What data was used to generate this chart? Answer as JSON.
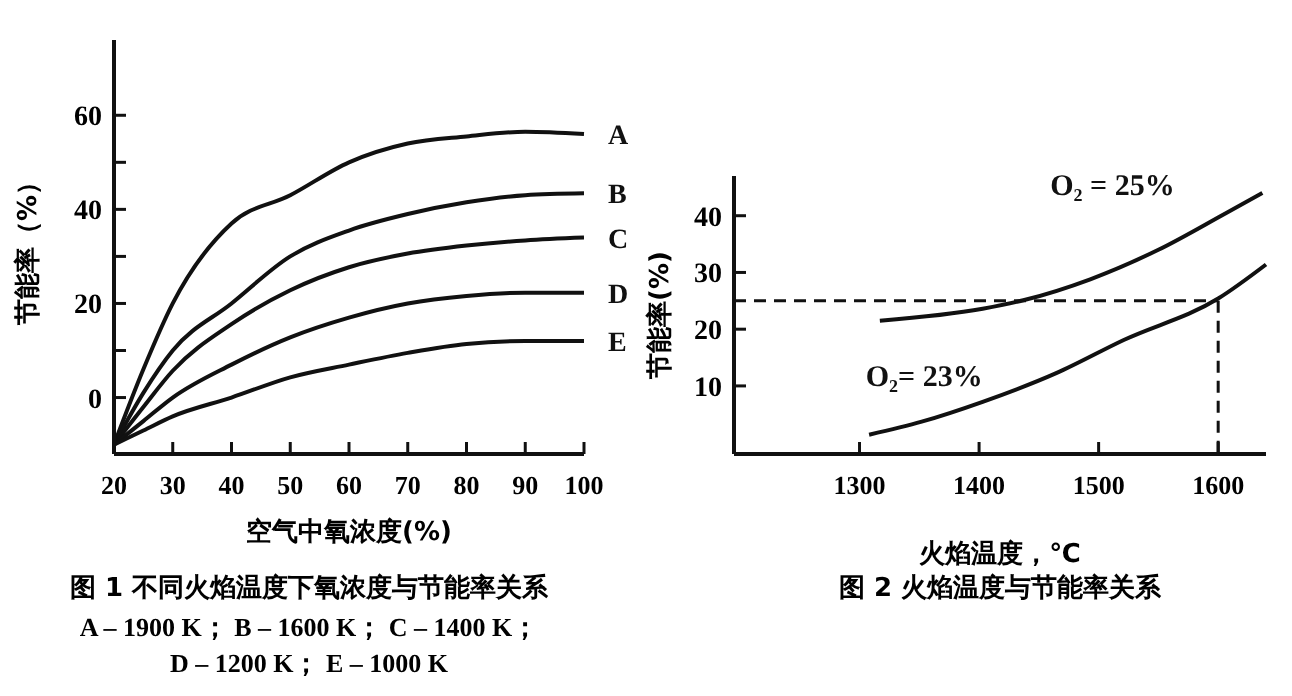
{
  "chart_data": [
    {
      "type": "line",
      "title": "图 1 不同火焰温度下氧浓度与节能率关系",
      "xlabel": "空气中氧浓度(%)",
      "ylabel": "节能率（%）",
      "x": [
        20,
        25,
        30,
        40,
        50,
        60,
        70,
        80,
        90,
        100
      ],
      "series": [
        {
          "name": "A",
          "color": "#111111",
          "values": [
            -10,
            6,
            20,
            37,
            43,
            50,
            54,
            55.5,
            56.5,
            56
          ]
        },
        {
          "name": "B",
          "color": "#111111",
          "values": [
            -10,
            1,
            10,
            20,
            30,
            35.5,
            39,
            41.5,
            43,
            43.4
          ]
        },
        {
          "name": "C",
          "color": "#111111",
          "values": [
            -10,
            -2,
            5.7,
            15.6,
            22.8,
            27.7,
            30.6,
            32.3,
            33.4,
            34
          ]
        },
        {
          "name": "D",
          "color": "#111111",
          "values": [
            -10,
            -5,
            0,
            7,
            12.8,
            17,
            20,
            21.6,
            22.3,
            22.3
          ]
        },
        {
          "name": "E",
          "color": "#111111",
          "values": [
            -10,
            -7,
            -4,
            0,
            4.3,
            7,
            9.5,
            11.4,
            12,
            12
          ]
        }
      ],
      "xlim": [
        20,
        100
      ],
      "xticks": [
        20,
        30,
        40,
        50,
        60,
        70,
        80,
        90,
        100
      ],
      "ylim": [
        -12,
        76
      ],
      "yticks": [
        0,
        {
          "value": 10,
          "label": null
        },
        20,
        {
          "value": 30,
          "label": null
        },
        40,
        {
          "value": 50,
          "label": null
        },
        60
      ],
      "annotations": [
        "A – 1900 K；  B – 1600 K；  C – 1400 K；",
        "D – 1200 K；  E – 1000 K"
      ],
      "grid": false,
      "marker": "none",
      "line_style": "solid"
    },
    {
      "type": "line",
      "title": "图 2 火焰温度与节能率关系",
      "xlabel": "火焰温度，℃",
      "ylabel": "节能率(%)",
      "series": [
        {
          "name": "O₂ = 25%",
          "color": "#111111",
          "x": [
            1317,
            1403,
            1437,
            1493,
            1550,
            1606,
            1637
          ],
          "values": [
            21.5,
            23.6,
            25.1,
            28.8,
            34,
            40.4,
            44
          ]
        },
        {
          "name": "O₂= 23%",
          "color": "#111111",
          "x": [
            1308,
            1352,
            1403,
            1465,
            1521,
            1600,
            1640
          ],
          "values": [
            1.4,
            3.7,
            7.2,
            12.3,
            18.1,
            25.4,
            31.4
          ]
        }
      ],
      "xlim": [
        1195,
        1640
      ],
      "xticks": [
        1300,
        1400,
        1500,
        1600
      ],
      "ylim": [
        -2,
        47
      ],
      "yticks": [
        10,
        20,
        30,
        40
      ],
      "ref_lines": [
        {
          "axis": "y",
          "value": 25,
          "color": "#111111",
          "line_style": "dashed"
        },
        {
          "axis": "x",
          "value": 1600,
          "color": "#111111",
          "line_style": "dashed"
        }
      ],
      "grid": false,
      "marker": "none",
      "line_style": "solid"
    }
  ]
}
